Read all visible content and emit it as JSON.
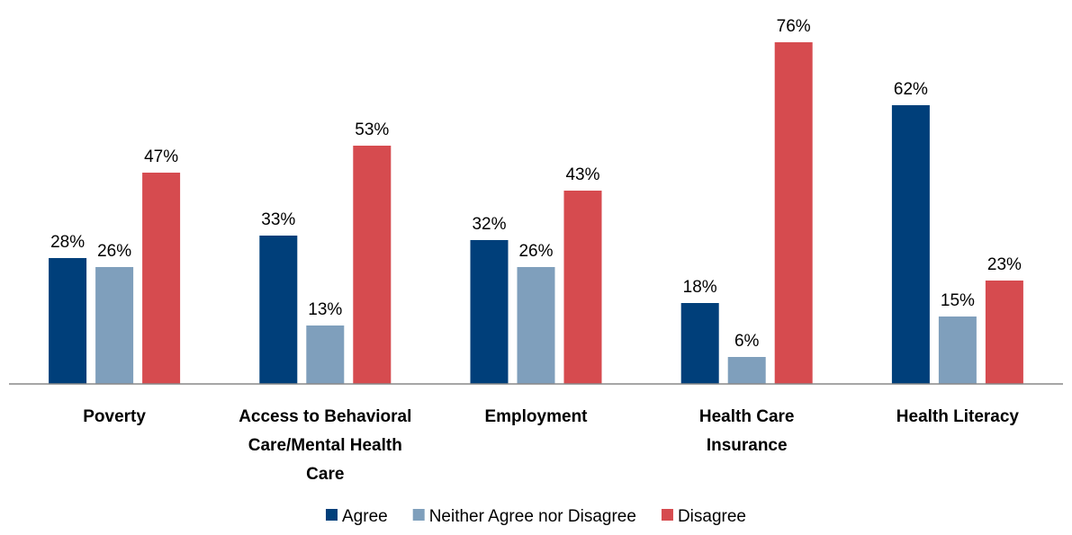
{
  "chart_data": {
    "type": "bar",
    "categories": [
      [
        "Poverty"
      ],
      [
        "Access to Behavioral",
        "Care/Mental Health",
        "Care"
      ],
      [
        "Employment"
      ],
      [
        "Health Care",
        "Insurance"
      ],
      [
        "Health Literacy"
      ]
    ],
    "series": [
      {
        "name": "Agree",
        "color": "#003f7a",
        "values": [
          28,
          33,
          32,
          18,
          62
        ]
      },
      {
        "name": "Neither Agree nor Disagree",
        "color": "#7f9fbc",
        "values": [
          26,
          13,
          26,
          6,
          15
        ]
      },
      {
        "name": "Disagree",
        "color": "#d64b4f",
        "values": [
          47,
          53,
          43,
          76,
          23
        ]
      }
    ],
    "value_suffix": "%",
    "ylim": [
      0,
      80
    ],
    "grid": false,
    "legend_position": "bottom",
    "title": "",
    "xlabel": "",
    "ylabel": ""
  }
}
